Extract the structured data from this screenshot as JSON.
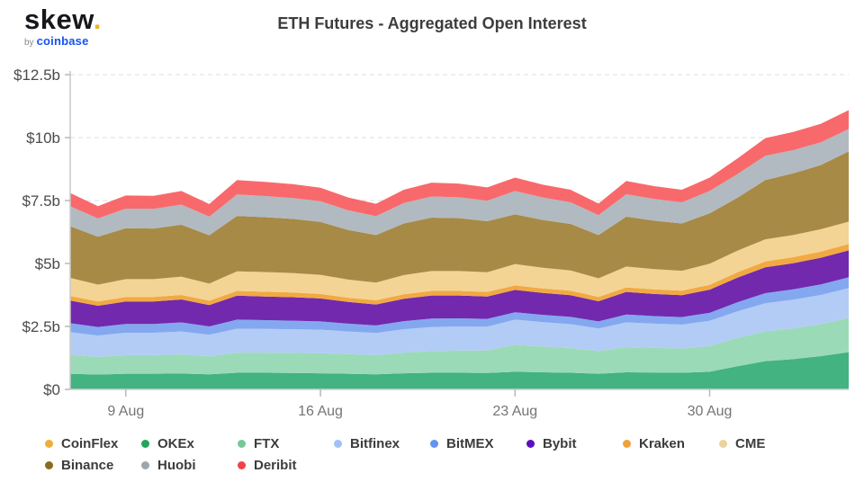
{
  "branding": {
    "logo_text": "skew",
    "logo_dot": ".",
    "byline_prefix": "by",
    "byline_brand": "coinbase",
    "logo_dot_color": "#eab430",
    "byline_brand_color": "#1652f0"
  },
  "header": {
    "title": "ETH Futures - Aggregated Open Interest"
  },
  "chart_data": {
    "type": "area",
    "stacked": true,
    "title": "ETH Futures - Aggregated Open Interest",
    "unit": "USD billions",
    "xlabel": "",
    "ylabel": "",
    "ylim": [
      0,
      12.5
    ],
    "y_ticks": [
      0,
      2.5,
      5,
      7.5,
      10,
      12.5
    ],
    "y_tick_labels": [
      "$0",
      "$2.5b",
      "$5b",
      "$7.5b",
      "$10b",
      "$12.5b"
    ],
    "grid": "dashed-horizontal",
    "legend_position": "bottom",
    "x": [
      "7 Aug",
      "8 Aug",
      "9 Aug",
      "10 Aug",
      "11 Aug",
      "12 Aug",
      "13 Aug",
      "14 Aug",
      "15 Aug",
      "16 Aug",
      "17 Aug",
      "18 Aug",
      "19 Aug",
      "20 Aug",
      "21 Aug",
      "22 Aug",
      "23 Aug",
      "24 Aug",
      "25 Aug",
      "26 Aug",
      "27 Aug",
      "28 Aug",
      "29 Aug",
      "30 Aug",
      "31 Aug",
      "1 Sep",
      "2 Sep",
      "3 Sep",
      "4 Sep"
    ],
    "x_tick_labels": [
      "9 Aug",
      "16 Aug",
      "23 Aug",
      "30 Aug"
    ],
    "x_tick_indices": [
      2,
      9,
      16,
      23
    ],
    "series": [
      {
        "name": "CoinFlex",
        "color": "#eab038",
        "fill": "#f0c35e",
        "values": [
          0.02,
          0.02,
          0.02,
          0.02,
          0.02,
          0.02,
          0.02,
          0.02,
          0.02,
          0.02,
          0.02,
          0.02,
          0.02,
          0.02,
          0.02,
          0.02,
          0.02,
          0.02,
          0.02,
          0.02,
          0.02,
          0.02,
          0.02,
          0.02,
          0.02,
          0.02,
          0.02,
          0.02,
          0.02
        ]
      },
      {
        "name": "OKEx",
        "color": "#22a55b",
        "fill": "#42b381",
        "values": [
          0.6,
          0.57,
          0.6,
          0.6,
          0.61,
          0.58,
          0.64,
          0.64,
          0.63,
          0.62,
          0.6,
          0.58,
          0.62,
          0.64,
          0.64,
          0.63,
          0.68,
          0.66,
          0.64,
          0.6,
          0.66,
          0.65,
          0.64,
          0.68,
          0.9,
          1.1,
          1.18,
          1.3,
          1.46
        ]
      },
      {
        "name": "FTX",
        "color": "#76c898",
        "fill": "#9bdab6",
        "values": [
          0.75,
          0.7,
          0.74,
          0.74,
          0.76,
          0.71,
          0.8,
          0.8,
          0.8,
          0.8,
          0.78,
          0.76,
          0.82,
          0.86,
          0.88,
          0.9,
          1.07,
          1.02,
          0.98,
          0.9,
          1.0,
          0.98,
          0.96,
          1.02,
          1.12,
          1.18,
          1.22,
          1.27,
          1.36
        ]
      },
      {
        "name": "Bitfinex",
        "color": "#a0c1f6",
        "fill": "#b2ccf5",
        "values": [
          0.9,
          0.85,
          0.89,
          0.89,
          0.91,
          0.86,
          0.95,
          0.94,
          0.94,
          0.93,
          0.9,
          0.88,
          0.93,
          0.96,
          0.96,
          0.94,
          1.0,
          0.97,
          0.95,
          0.9,
          0.98,
          0.96,
          0.95,
          1.0,
          1.06,
          1.12,
          1.14,
          1.16,
          1.18
        ]
      },
      {
        "name": "BitMEX",
        "color": "#6393f0",
        "fill": "#84a8ef",
        "values": [
          0.36,
          0.34,
          0.35,
          0.35,
          0.36,
          0.33,
          0.36,
          0.35,
          0.34,
          0.33,
          0.31,
          0.3,
          0.32,
          0.33,
          0.32,
          0.31,
          0.29,
          0.29,
          0.29,
          0.28,
          0.31,
          0.3,
          0.3,
          0.32,
          0.36,
          0.4,
          0.41,
          0.42,
          0.43
        ]
      },
      {
        "name": "Bybit",
        "color": "#5b10bf",
        "fill": "#7229ae",
        "values": [
          0.9,
          0.84,
          0.89,
          0.89,
          0.91,
          0.85,
          0.95,
          0.94,
          0.93,
          0.91,
          0.86,
          0.83,
          0.89,
          0.92,
          0.91,
          0.89,
          0.89,
          0.87,
          0.86,
          0.8,
          0.9,
          0.88,
          0.87,
          0.92,
          0.98,
          1.03,
          1.04,
          1.06,
          1.07
        ]
      },
      {
        "name": "Kraken",
        "color": "#f0a23a",
        "fill": "#f2a942",
        "values": [
          0.18,
          0.17,
          0.18,
          0.18,
          0.18,
          0.17,
          0.19,
          0.19,
          0.19,
          0.18,
          0.17,
          0.17,
          0.18,
          0.18,
          0.18,
          0.18,
          0.18,
          0.18,
          0.18,
          0.17,
          0.18,
          0.18,
          0.18,
          0.19,
          0.21,
          0.23,
          0.24,
          0.24,
          0.25
        ]
      },
      {
        "name": "CME",
        "color": "#edd1a0",
        "fill": "#f3d494",
        "values": [
          0.72,
          0.67,
          0.71,
          0.71,
          0.73,
          0.68,
          0.78,
          0.78,
          0.77,
          0.76,
          0.72,
          0.7,
          0.76,
          0.79,
          0.79,
          0.78,
          0.85,
          0.82,
          0.8,
          0.74,
          0.83,
          0.81,
          0.79,
          0.84,
          0.86,
          0.88,
          0.88,
          0.89,
          0.89
        ]
      },
      {
        "name": "Binance",
        "color": "#8b6b22",
        "fill": "#a78a45",
        "values": [
          2.05,
          1.9,
          2.02,
          2.01,
          2.06,
          1.92,
          2.2,
          2.18,
          2.15,
          2.1,
          1.97,
          1.89,
          2.05,
          2.12,
          2.1,
          2.03,
          1.97,
          1.9,
          1.85,
          1.72,
          1.98,
          1.92,
          1.88,
          2.0,
          2.1,
          2.35,
          2.45,
          2.55,
          2.79
        ]
      },
      {
        "name": "Huobi",
        "color": "#9ea6ad",
        "fill": "#b1bac0",
        "values": [
          0.79,
          0.73,
          0.78,
          0.78,
          0.8,
          0.74,
          0.85,
          0.84,
          0.83,
          0.82,
          0.78,
          0.75,
          0.81,
          0.84,
          0.83,
          0.81,
          0.93,
          0.89,
          0.86,
          0.79,
          0.89,
          0.86,
          0.84,
          0.89,
          0.94,
          0.97,
          0.92,
          0.9,
          0.89
        ]
      },
      {
        "name": "Deribit",
        "color": "#ef4347",
        "fill": "#f8696c",
        "values": [
          0.53,
          0.49,
          0.52,
          0.52,
          0.54,
          0.5,
          0.57,
          0.56,
          0.55,
          0.54,
          0.51,
          0.49,
          0.53,
          0.55,
          0.54,
          0.53,
          0.53,
          0.51,
          0.5,
          0.46,
          0.53,
          0.51,
          0.5,
          0.53,
          0.62,
          0.7,
          0.72,
          0.74,
          0.75
        ]
      }
    ],
    "legend_rows": [
      [
        0,
        1,
        2,
        3,
        4,
        5,
        6,
        7
      ],
      [
        8,
        9,
        10
      ]
    ]
  }
}
